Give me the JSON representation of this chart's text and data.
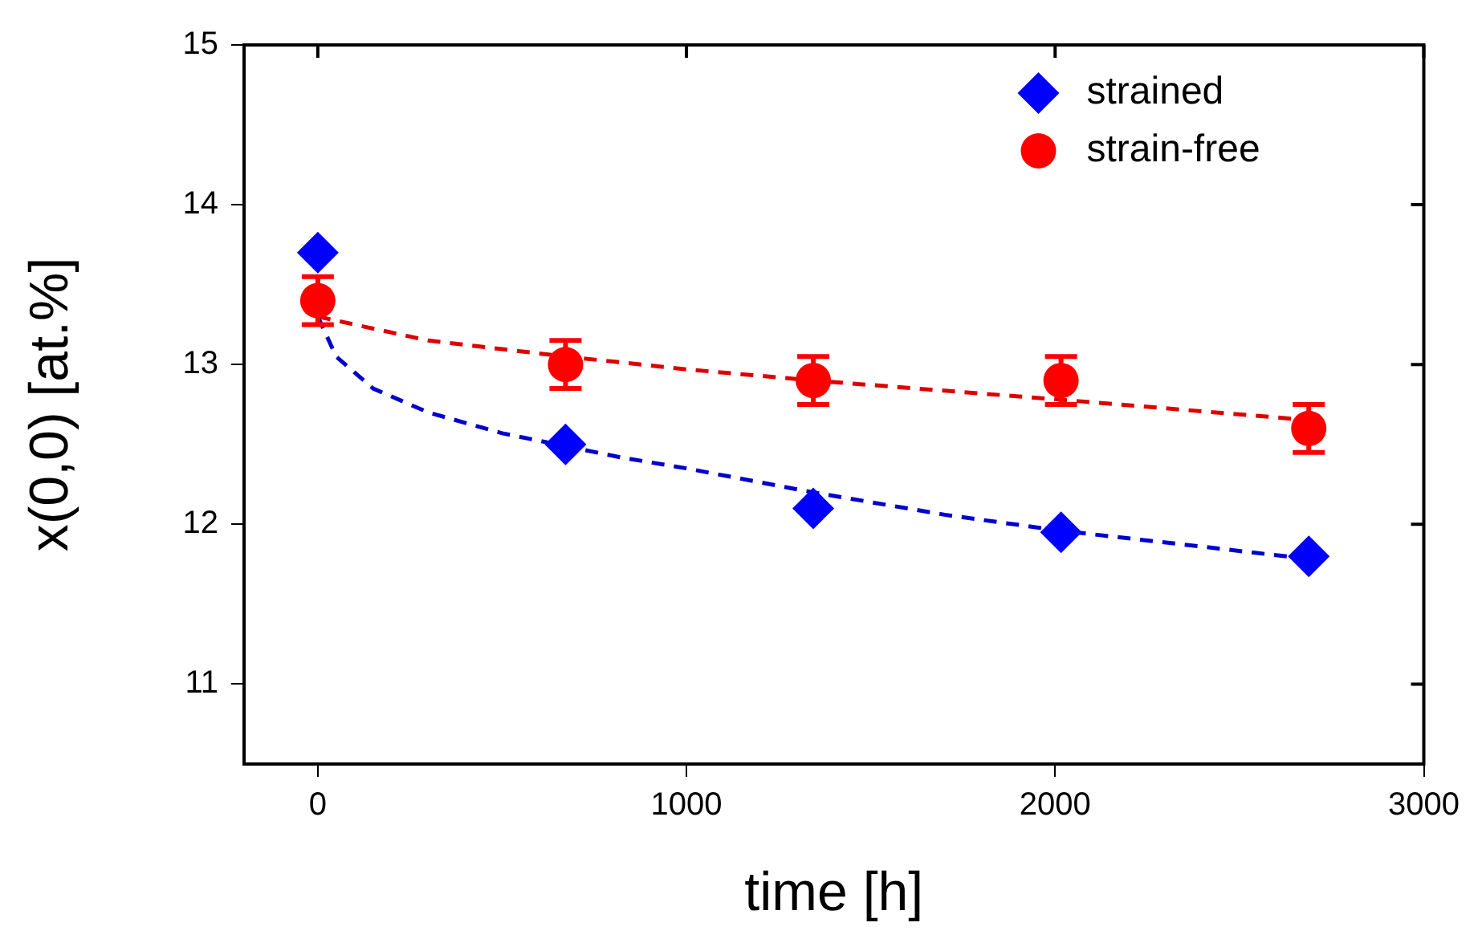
{
  "chart_data": {
    "type": "scatter",
    "xlabel": "time [h]",
    "ylabel": "x(0,0) [at.%]",
    "xlim": [
      -200,
      3000
    ],
    "xticks": [
      0,
      1000,
      2000,
      3000
    ],
    "ylim": [
      10.5,
      15
    ],
    "yticks": [
      11,
      12,
      13,
      14,
      15
    ],
    "grid": false,
    "legend": "top right",
    "series": [
      {
        "name": "strained",
        "color": "#0000ff",
        "marker": "diamond",
        "x": [
          0,
          672,
          1344,
          2016,
          2688
        ],
        "values": [
          13.7,
          12.5,
          12.1,
          11.95,
          11.8
        ]
      },
      {
        "name": "strain-free",
        "color": "#ff0000",
        "marker": "circle",
        "x": [
          0,
          672,
          1344,
          2016,
          2688
        ],
        "values": [
          13.4,
          13.0,
          12.9,
          12.9,
          12.6
        ],
        "errors": [
          0.15,
          0.15,
          0.15,
          0.15,
          0.15
        ]
      },
      {
        "type": "line",
        "color": "#0000cc",
        "marker": "none",
        "line_style": "dashed",
        "x": [
          0,
          50,
          150,
          300,
          500,
          820,
          1000,
          1344,
          1700,
          2016,
          2400,
          2700
        ],
        "values": [
          13.3,
          13.05,
          12.85,
          12.7,
          12.57,
          12.42,
          12.35,
          12.2,
          12.06,
          11.96,
          11.86,
          11.78
        ]
      },
      {
        "type": "line",
        "color": "#dd0000",
        "marker": "none",
        "line_style": "dashed",
        "x": [
          0,
          300,
          672,
          1000,
          1344,
          2016,
          2700
        ],
        "values": [
          13.3,
          13.15,
          13.05,
          12.97,
          12.9,
          12.78,
          12.65
        ]
      }
    ]
  }
}
